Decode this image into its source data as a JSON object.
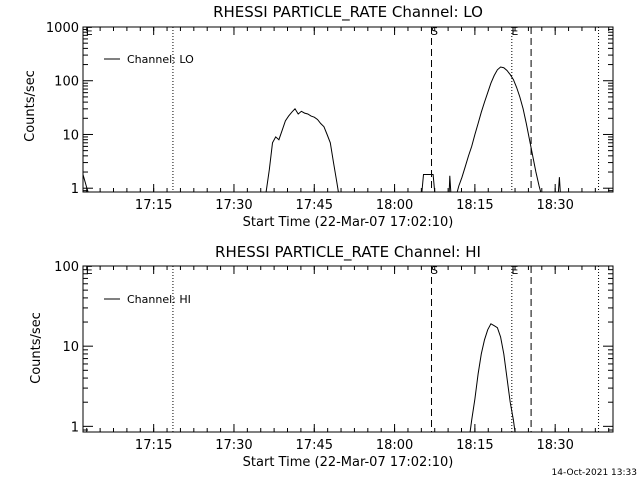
{
  "footer": {
    "timestamp": "14-Oct-2021 13:33"
  },
  "chart_data": [
    {
      "type": "line",
      "title": "RHESSI PARTICLE_RATE Channel: LO",
      "xlabel": "Start Time (22-Mar-07 17:02:10)",
      "ylabel": "Counts/sec",
      "yscale": "log",
      "xlim": [
        17.03,
        18.68
      ],
      "ylim": [
        0.85,
        1000
      ],
      "x_ticks": [
        {
          "v": 17.25,
          "label": "17:15"
        },
        {
          "v": 17.5,
          "label": "17:30"
        },
        {
          "v": 17.75,
          "label": "17:45"
        },
        {
          "v": 18.0,
          "label": "18:00"
        },
        {
          "v": 18.25,
          "label": "18:15"
        },
        {
          "v": 18.5,
          "label": "18:30"
        }
      ],
      "y_ticks": [
        {
          "v": 1,
          "label": "1"
        },
        {
          "v": 10,
          "label": "10"
        },
        {
          "v": 100,
          "label": "100"
        },
        {
          "v": 1000,
          "label": "1000"
        }
      ],
      "legend": {
        "position": "top-left",
        "label": "Channel: LO"
      },
      "markers": [
        {
          "x": 17.04,
          "label": "E",
          "style": "none"
        },
        {
          "x": 18.115,
          "label": "S",
          "style": "dashed"
        },
        {
          "x": 18.365,
          "label": "E",
          "style": "dotted"
        },
        {
          "x": 18.425,
          "label": "",
          "style": "dashed"
        }
      ],
      "vlines": [
        {
          "x": 17.31,
          "style": "dotted"
        },
        {
          "x": 18.635,
          "style": "dotted"
        }
      ],
      "series": [
        {
          "name": "",
          "segments": [
            [
              [
                17.03,
                1.8
              ],
              [
                17.042,
                1.0
              ],
              [
                17.046,
                0.85
              ]
            ],
            [
              [
                17.6,
                0.85
              ],
              [
                17.61,
                2.2
              ],
              [
                17.62,
                7
              ],
              [
                17.63,
                9
              ],
              [
                17.64,
                8
              ],
              [
                17.65,
                12
              ],
              [
                17.66,
                18
              ],
              [
                17.67,
                22
              ],
              [
                17.68,
                26
              ],
              [
                17.69,
                30
              ],
              [
                17.7,
                24
              ],
              [
                17.71,
                27
              ],
              [
                17.72,
                25
              ],
              [
                17.73,
                24
              ],
              [
                17.74,
                22
              ],
              [
                17.75,
                21
              ],
              [
                17.76,
                19
              ],
              [
                17.77,
                16
              ],
              [
                17.78,
                14
              ],
              [
                17.79,
                10
              ],
              [
                17.8,
                7
              ],
              [
                17.81,
                3
              ],
              [
                17.82,
                1.3
              ],
              [
                17.825,
                0.85
              ]
            ],
            [
              [
                18.085,
                0.85
              ],
              [
                18.09,
                1.8
              ],
              [
                18.12,
                1.8
              ],
              [
                18.125,
                0.85
              ]
            ],
            [
              [
                18.17,
                0.85
              ],
              [
                18.172,
                1.7
              ],
              [
                18.175,
                0.85
              ]
            ],
            [
              [
                18.195,
                0.85
              ],
              [
                18.2,
                1.1
              ],
              [
                18.21,
                1.6
              ],
              [
                18.22,
                2.5
              ],
              [
                18.23,
                4
              ],
              [
                18.24,
                6
              ],
              [
                18.25,
                10
              ],
              [
                18.26,
                16
              ],
              [
                18.27,
                26
              ],
              [
                18.28,
                40
              ],
              [
                18.29,
                60
              ],
              [
                18.3,
                90
              ],
              [
                18.31,
                125
              ],
              [
                18.32,
                160
              ],
              [
                18.33,
                180
              ],
              [
                18.34,
                175
              ],
              [
                18.35,
                155
              ],
              [
                18.36,
                130
              ],
              [
                18.37,
                105
              ],
              [
                18.38,
                75
              ],
              [
                18.39,
                50
              ],
              [
                18.4,
                30
              ],
              [
                18.41,
                16
              ],
              [
                18.42,
                8
              ],
              [
                18.43,
                4
              ],
              [
                18.44,
                2
              ],
              [
                18.45,
                1.1
              ],
              [
                18.455,
                0.85
              ]
            ],
            [
              [
                18.51,
                0.85
              ],
              [
                18.513,
                1.6
              ],
              [
                18.516,
                0.85
              ]
            ]
          ]
        }
      ]
    },
    {
      "type": "line",
      "title": "RHESSI PARTICLE_RATE Channel: HI",
      "xlabel": "Start Time (22-Mar-07 17:02:10)",
      "ylabel": "Counts/sec",
      "yscale": "log",
      "xlim": [
        17.03,
        18.68
      ],
      "ylim": [
        0.85,
        100
      ],
      "x_ticks": [
        {
          "v": 17.25,
          "label": "17:15"
        },
        {
          "v": 17.5,
          "label": "17:30"
        },
        {
          "v": 17.75,
          "label": "17:45"
        },
        {
          "v": 18.0,
          "label": "18:00"
        },
        {
          "v": 18.25,
          "label": "18:15"
        },
        {
          "v": 18.5,
          "label": "18:30"
        }
      ],
      "y_ticks": [
        {
          "v": 1,
          "label": "1"
        },
        {
          "v": 10,
          "label": "10"
        },
        {
          "v": 100,
          "label": "100"
        }
      ],
      "legend": {
        "position": "top-left",
        "label": "Channel: HI"
      },
      "markers": [
        {
          "x": 17.04,
          "label": "E",
          "style": "none"
        },
        {
          "x": 18.115,
          "label": "S",
          "style": "dashed"
        },
        {
          "x": 18.365,
          "label": "E",
          "style": "dotted"
        },
        {
          "x": 18.425,
          "label": "",
          "style": "dashed"
        }
      ],
      "vlines": [
        {
          "x": 17.31,
          "style": "dotted"
        },
        {
          "x": 18.635,
          "style": "dotted"
        }
      ],
      "series": [
        {
          "name": "",
          "segments": [
            [
              [
                18.235,
                0.85
              ],
              [
                18.24,
                1.2
              ],
              [
                18.25,
                2.2
              ],
              [
                18.26,
                4.5
              ],
              [
                18.27,
                8
              ],
              [
                18.28,
                12
              ],
              [
                18.29,
                16
              ],
              [
                18.3,
                19
              ],
              [
                18.31,
                18
              ],
              [
                18.32,
                17
              ],
              [
                18.33,
                13
              ],
              [
                18.34,
                8
              ],
              [
                18.35,
                4
              ],
              [
                18.36,
                2
              ],
              [
                18.37,
                1.2
              ],
              [
                18.375,
                0.85
              ]
            ]
          ]
        }
      ]
    }
  ]
}
